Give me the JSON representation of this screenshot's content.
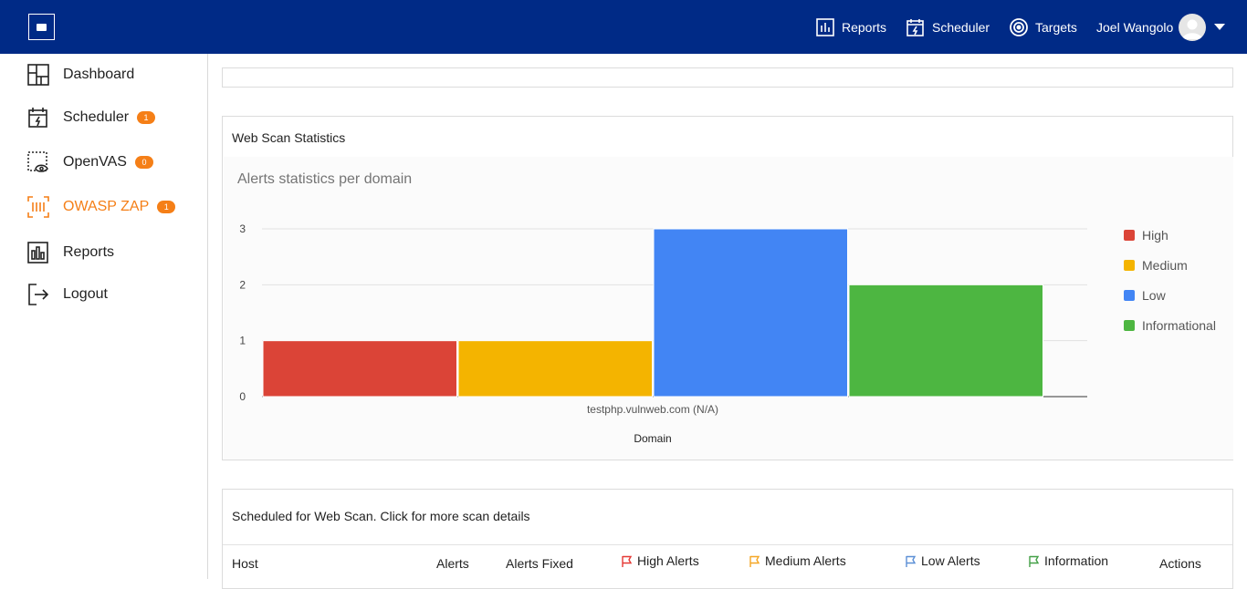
{
  "topbar": {
    "nav": [
      {
        "label": "Reports",
        "icon": "reports-icon"
      },
      {
        "label": "Scheduler",
        "icon": "scheduler-icon"
      },
      {
        "label": "Targets",
        "icon": "target-icon"
      }
    ],
    "user_name": "Joel Wangolo"
  },
  "sidebar": {
    "items": [
      {
        "label": "Dashboard",
        "icon": "dashboard-icon",
        "badge": ""
      },
      {
        "label": "Scheduler",
        "icon": "scheduler-icon",
        "badge": "1"
      },
      {
        "label": "OpenVAS",
        "icon": "openvas-icon",
        "badge": "0"
      },
      {
        "label": "OWASP ZAP",
        "icon": "owasp-zap-icon",
        "badge": "1",
        "active": true
      },
      {
        "label": "Reports",
        "icon": "reports-icon",
        "badge": ""
      },
      {
        "label": "Logout",
        "icon": "logout-icon",
        "badge": ""
      }
    ]
  },
  "stats_panel": {
    "title": "Web Scan Statistics"
  },
  "chart_data": {
    "type": "bar",
    "title": "Alerts statistics per domain",
    "categories": [
      "testphp.vulnweb.com (N/A)"
    ],
    "series": [
      {
        "name": "High",
        "values": [
          1
        ],
        "color": "#db4437"
      },
      {
        "name": "Medium",
        "values": [
          1
        ],
        "color": "#f4b400"
      },
      {
        "name": "Low",
        "values": [
          3
        ],
        "color": "#4285f4"
      },
      {
        "name": "Informational",
        "values": [
          2
        ],
        "color": "#4db641"
      }
    ],
    "xlabel": "Domain",
    "ylabel": "",
    "ylim": [
      0,
      3
    ],
    "yticks": [
      "0",
      "1",
      "2",
      "3"
    ],
    "grid": true,
    "legend": "right"
  },
  "scheduled_panel": {
    "title": "Scheduled for Web Scan. Click for more scan details",
    "columns": [
      {
        "label": "Host"
      },
      {
        "label": "Alerts"
      },
      {
        "label": "Alerts Fixed"
      },
      {
        "label": "High Alerts",
        "flag_color": "#e53935"
      },
      {
        "label": "Medium Alerts",
        "flag_color": "#f5a623"
      },
      {
        "label": "Low Alerts",
        "flag_color": "#5b8fd6"
      },
      {
        "label": "Information",
        "flag_color": "#43a047"
      },
      {
        "label": "Actions"
      }
    ]
  },
  "colors": {
    "topbar": "#002a86",
    "accent": "#f57f17"
  }
}
